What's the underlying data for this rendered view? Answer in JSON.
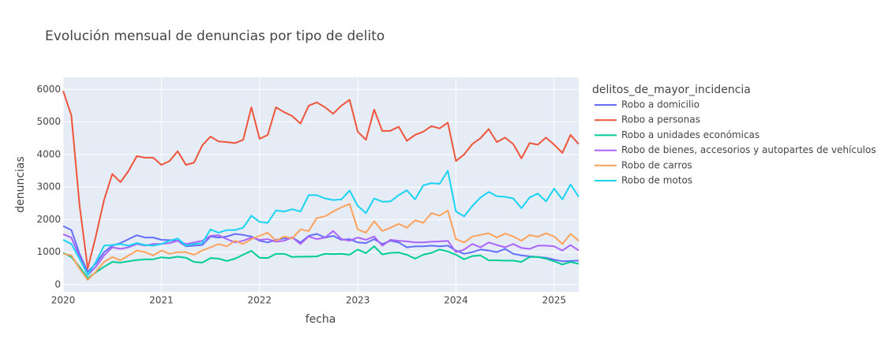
{
  "chart_data": {
    "type": "line",
    "title": "Evolución mensual de denuncias por tipo de delito",
    "x_label": "fecha",
    "y_label": "denuncias",
    "legend_title": "delitos_de_mayor_incidencia",
    "legend_position": "right",
    "grid": true,
    "x": [
      "2020-01",
      "2020-02",
      "2020-03",
      "2020-04",
      "2020-05",
      "2020-06",
      "2020-07",
      "2020-08",
      "2020-09",
      "2020-10",
      "2020-11",
      "2020-12",
      "2021-01",
      "2021-02",
      "2021-03",
      "2021-04",
      "2021-05",
      "2021-06",
      "2021-07",
      "2021-08",
      "2021-09",
      "2021-10",
      "2021-11",
      "2021-12",
      "2022-01",
      "2022-02",
      "2022-03",
      "2022-04",
      "2022-05",
      "2022-06",
      "2022-07",
      "2022-08",
      "2022-09",
      "2022-10",
      "2022-11",
      "2022-12",
      "2023-01",
      "2023-02",
      "2023-03",
      "2023-04",
      "2023-05",
      "2023-06",
      "2023-07",
      "2023-08",
      "2023-09",
      "2023-10",
      "2023-11",
      "2023-12",
      "2024-01",
      "2024-02",
      "2024-03",
      "2024-04",
      "2024-05",
      "2024-06",
      "2024-07",
      "2024-08",
      "2024-09",
      "2024-10",
      "2024-11",
      "2024-12",
      "2025-01",
      "2025-02",
      "2025-03",
      "2025-04"
    ],
    "xlim": [
      "2020-01",
      "2025-04"
    ],
    "xticks": [
      "2020",
      "2021",
      "2022",
      "2023",
      "2024",
      "2025"
    ],
    "ylim": [
      -220,
      6370
    ],
    "yticks": [
      0,
      1000,
      2000,
      3000,
      4000,
      5000,
      6000
    ],
    "series": [
      {
        "name": "Robo a domicilio",
        "color": "#636efa",
        "values": [
          1800,
          1680,
          950,
          400,
          650,
          1000,
          1200,
          1280,
          1400,
          1520,
          1450,
          1450,
          1380,
          1370,
          1350,
          1180,
          1200,
          1220,
          1480,
          1450,
          1480,
          1560,
          1530,
          1480,
          1350,
          1300,
          1380,
          1420,
          1450,
          1300,
          1500,
          1560,
          1450,
          1500,
          1380,
          1400,
          1300,
          1280,
          1400,
          1250,
          1350,
          1300,
          1150,
          1180,
          1180,
          1200,
          1180,
          1200,
          1050,
          950,
          1000,
          1080,
          1050,
          1000,
          1100,
          950,
          900,
          870,
          850,
          830,
          770,
          720,
          730,
          740
        ]
      },
      {
        "name": "Robo a personas",
        "color": "#ef553b",
        "values": [
          5950,
          5200,
          2450,
          500,
          1500,
          2600,
          3400,
          3150,
          3500,
          3950,
          3900,
          3900,
          3680,
          3800,
          4100,
          3680,
          3750,
          4280,
          4550,
          4400,
          4380,
          4350,
          4450,
          5450,
          4480,
          4600,
          5450,
          5300,
          5180,
          4950,
          5500,
          5600,
          5450,
          5250,
          5500,
          5680,
          4700,
          4450,
          5380,
          4720,
          4730,
          4850,
          4420,
          4600,
          4700,
          4870,
          4800,
          4980,
          3800,
          4000,
          4320,
          4500,
          4780,
          4380,
          4520,
          4320,
          3880,
          4350,
          4300,
          4520,
          4300,
          4050,
          4600,
          4320
        ]
      },
      {
        "name": "Robo a unidades económicas",
        "color": "#00cc96",
        "values": [
          980,
          850,
          550,
          200,
          380,
          550,
          700,
          680,
          720,
          760,
          780,
          780,
          840,
          820,
          860,
          830,
          700,
          680,
          820,
          800,
          730,
          800,
          920,
          1040,
          830,
          820,
          950,
          950,
          850,
          860,
          860,
          870,
          950,
          940,
          950,
          920,
          1080,
          970,
          1180,
          930,
          980,
          990,
          920,
          800,
          920,
          980,
          1080,
          1020,
          920,
          780,
          880,
          900,
          750,
          750,
          740,
          740,
          700,
          850,
          850,
          800,
          720,
          620,
          700,
          640
        ]
      },
      {
        "name": "Robo de bienes, accesorios y autopartes de vehículos",
        "color": "#ab63fa",
        "values": [
          1550,
          1450,
          850,
          300,
          550,
          900,
          1150,
          1100,
          1150,
          1250,
          1200,
          1250,
          1250,
          1280,
          1350,
          1250,
          1300,
          1350,
          1500,
          1520,
          1400,
          1300,
          1350,
          1450,
          1380,
          1400,
          1320,
          1350,
          1450,
          1250,
          1480,
          1400,
          1450,
          1650,
          1400,
          1350,
          1450,
          1380,
          1480,
          1200,
          1380,
          1350,
          1330,
          1300,
          1300,
          1320,
          1330,
          1350,
          1000,
          1080,
          1250,
          1150,
          1300,
          1220,
          1150,
          1250,
          1130,
          1100,
          1200,
          1200,
          1180,
          1050,
          1220,
          1050
        ]
      },
      {
        "name": "Robo de carros",
        "color": "#ffa15a",
        "values": [
          950,
          900,
          500,
          150,
          400,
          700,
          850,
          750,
          900,
          1050,
          1000,
          900,
          1050,
          950,
          1000,
          1000,
          920,
          1050,
          1150,
          1250,
          1180,
          1350,
          1250,
          1400,
          1500,
          1600,
          1350,
          1480,
          1420,
          1700,
          1650,
          2050,
          2100,
          2250,
          2380,
          2480,
          1700,
          1600,
          1950,
          1650,
          1750,
          1870,
          1750,
          1980,
          1900,
          2200,
          2120,
          2280,
          1400,
          1300,
          1480,
          1530,
          1580,
          1450,
          1570,
          1480,
          1350,
          1530,
          1470,
          1580,
          1480,
          1250,
          1560,
          1350
        ]
      },
      {
        "name": "Robo de motos",
        "color": "#19d3f3",
        "values": [
          1380,
          1250,
          800,
          300,
          700,
          1200,
          1220,
          1250,
          1200,
          1280,
          1220,
          1200,
          1250,
          1350,
          1420,
          1200,
          1250,
          1280,
          1700,
          1600,
          1680,
          1680,
          1750,
          2120,
          1930,
          1900,
          2280,
          2250,
          2320,
          2250,
          2750,
          2750,
          2650,
          2600,
          2620,
          2890,
          2420,
          2200,
          2650,
          2550,
          2560,
          2750,
          2900,
          2620,
          3050,
          3120,
          3100,
          3500,
          2250,
          2100,
          2420,
          2680,
          2850,
          2720,
          2700,
          2650,
          2350,
          2680,
          2800,
          2560,
          2950,
          2620,
          3080,
          2700
        ]
      }
    ]
  }
}
